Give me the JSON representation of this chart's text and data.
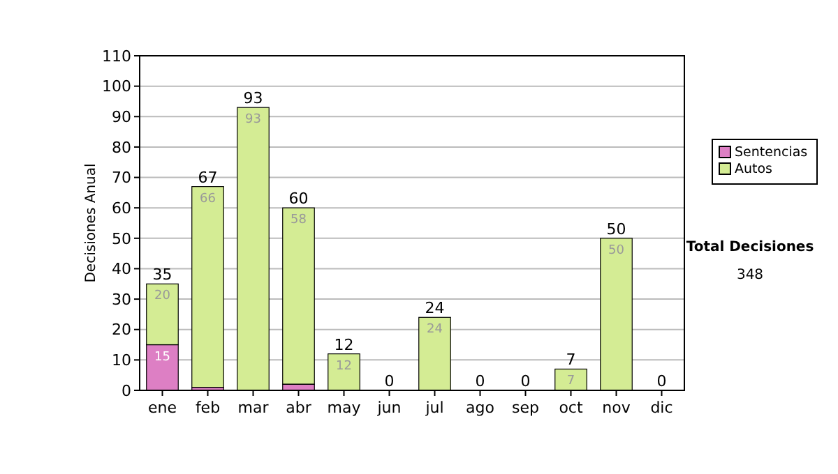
{
  "chart_data": {
    "type": "bar",
    "stacked": true,
    "ylabel": "Decisiones Anual",
    "categories": [
      "ene",
      "feb",
      "mar",
      "abr",
      "may",
      "jun",
      "jul",
      "ago",
      "sep",
      "oct",
      "nov",
      "dic"
    ],
    "series": [
      {
        "name": "Sentencias",
        "color": "#dd7fc4",
        "values": [
          15,
          1,
          0,
          2,
          0,
          0,
          0,
          0,
          0,
          0,
          0,
          0
        ],
        "value_labels": [
          "15",
          null,
          null,
          null,
          null,
          null,
          null,
          null,
          null,
          null,
          null,
          null
        ]
      },
      {
        "name": "Autos",
        "color": "#d4ec94",
        "values": [
          20,
          66,
          93,
          58,
          12,
          0,
          24,
          0,
          0,
          7,
          50,
          0
        ],
        "value_labels": [
          "20",
          "66",
          "93",
          "58",
          "12",
          null,
          "24",
          null,
          null,
          "7",
          "50",
          null
        ]
      }
    ],
    "totals": [
      "35",
      "67",
      "93",
      "60",
      "12",
      "0",
      "24",
      "0",
      "0",
      "7",
      "50",
      "0"
    ],
    "ylim": [
      0,
      110
    ],
    "yticks": [
      0,
      10,
      20,
      30,
      40,
      50,
      60,
      70,
      80,
      90,
      100,
      110
    ],
    "grid": "y",
    "legend": "right",
    "annotations": [
      "Total Decisiones",
      "348"
    ]
  }
}
